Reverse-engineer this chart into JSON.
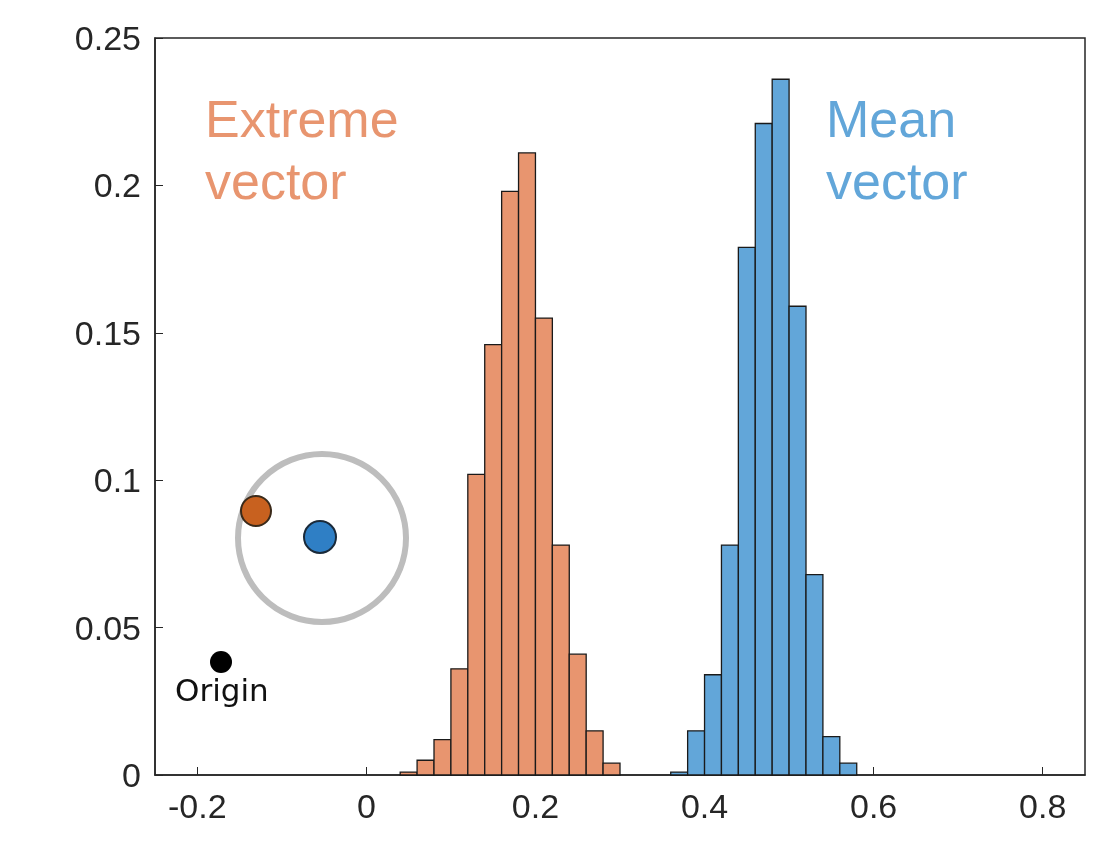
{
  "chart_data": {
    "type": "histogram",
    "xlim": [
      -0.25,
      0.85
    ],
    "xticks": [
      -0.2,
      0,
      0.2,
      0.4,
      0.6,
      0.8
    ],
    "ylim": [
      0,
      0.25
    ],
    "yticks": [
      0,
      0.05,
      0.1,
      0.15,
      0.2,
      0.25
    ],
    "bins": [
      0.04,
      0.06,
      0.08,
      0.1,
      0.12,
      0.14,
      0.16,
      0.18,
      0.2,
      0.22,
      0.24,
      0.26,
      0.28,
      0.3,
      0.32,
      0.34,
      0.36,
      0.38,
      0.4,
      0.42,
      0.44,
      0.46,
      0.48,
      0.5,
      0.52,
      0.54,
      0.56,
      0.58
    ],
    "series": [
      {
        "name": "Extreme vector",
        "color": "#e8956f",
        "values": [
          0.001,
          0.005,
          0.012,
          0.036,
          0.102,
          0.146,
          0.198,
          0.211,
          0.155,
          0.078,
          0.041,
          0.015,
          0.004,
          null,
          null,
          null,
          null,
          null,
          null,
          null,
          null,
          null,
          null,
          null,
          null,
          null,
          null
        ]
      },
      {
        "name": "Mean vector",
        "color": "#62a6d9",
        "values": [
          null,
          null,
          null,
          null,
          null,
          null,
          null,
          null,
          null,
          null,
          null,
          null,
          null,
          null,
          null,
          null,
          0.001,
          0.015,
          0.034,
          0.078,
          0.179,
          0.221,
          0.236,
          0.159,
          0.068,
          0.013,
          0.004
        ]
      }
    ],
    "annotations": [
      "Origin"
    ]
  }
}
